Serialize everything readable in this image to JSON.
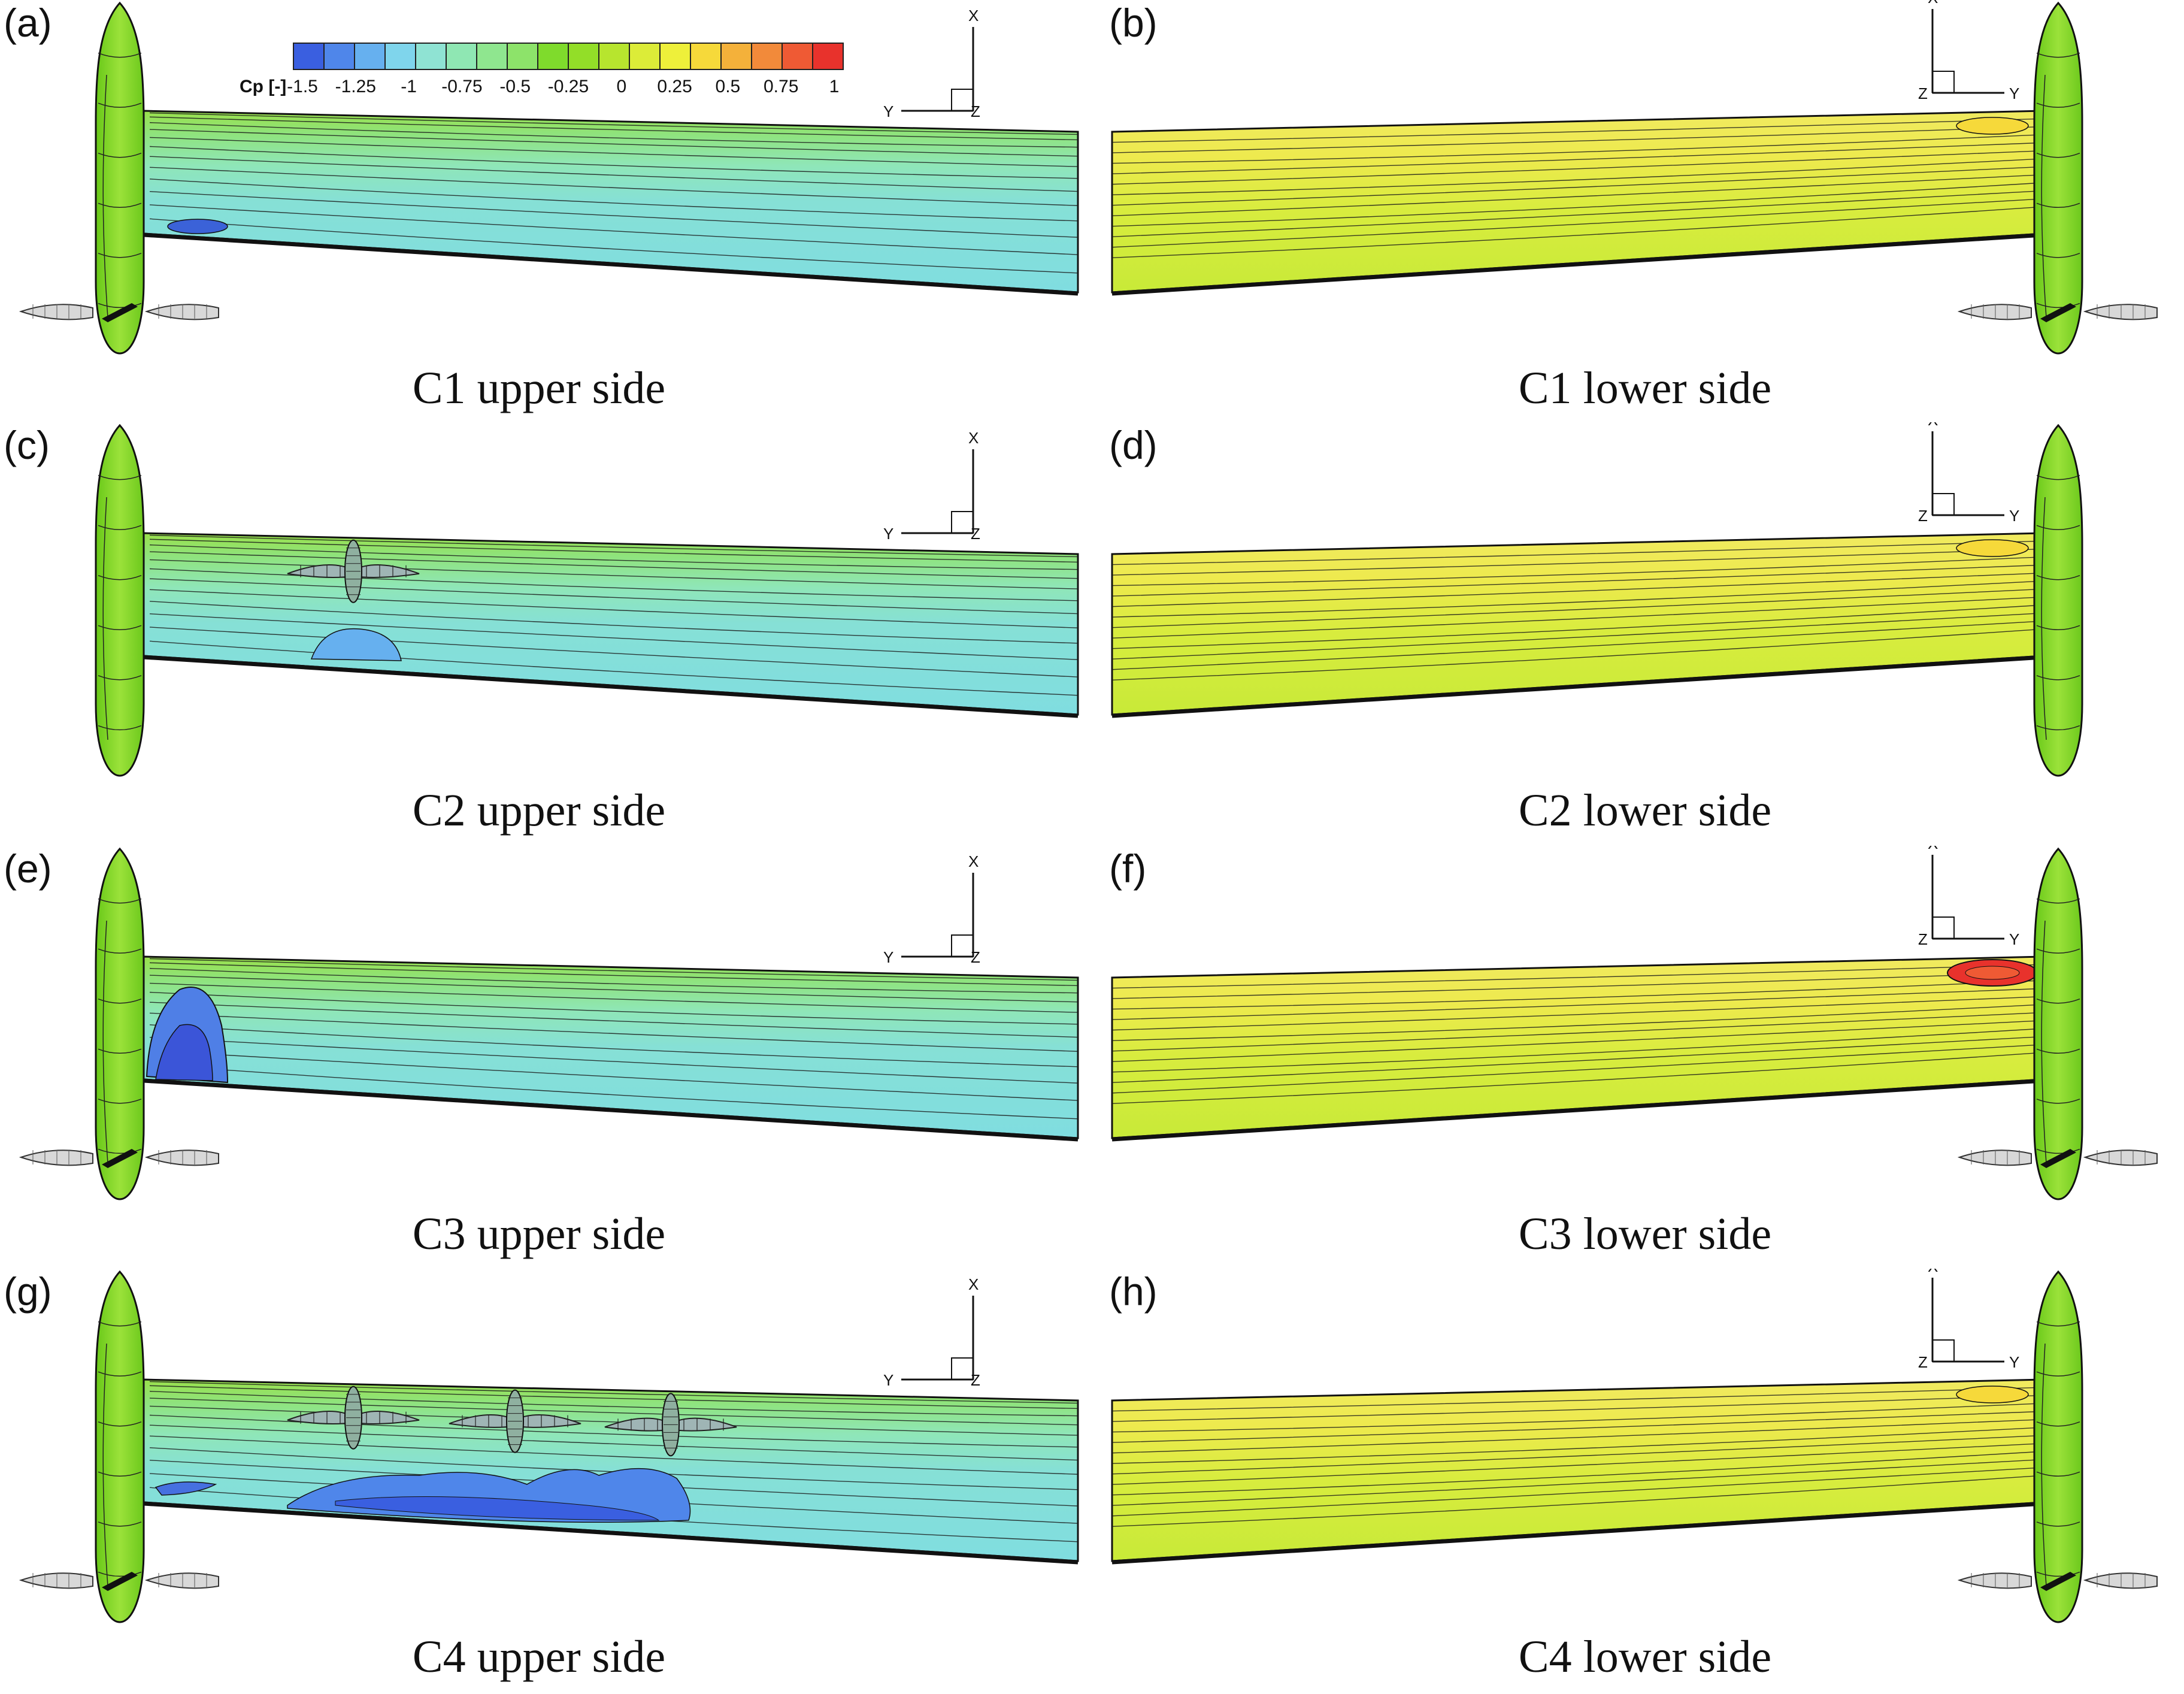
{
  "colorbar": {
    "title": "Cp [-]",
    "ticks": [
      "-1.5",
      "-1.25",
      "-1",
      "-0.75",
      "-0.5",
      "-0.25",
      "0",
      "0.25",
      "0.5",
      "0.75",
      "1"
    ],
    "colors": [
      "#3a5fe0",
      "#4f86ea",
      "#66b0ef",
      "#7fd5ec",
      "#8fe3d3",
      "#8fe7b3",
      "#8fe68f",
      "#8de36a",
      "#7fdb2c",
      "#93de28",
      "#b7e52e",
      "#dcec38",
      "#eef03a",
      "#f6d93a",
      "#f4b13a",
      "#f28a3a",
      "#ef5a34",
      "#e8322c"
    ]
  },
  "axes": {
    "x": "X",
    "y": "Y",
    "z": "Z"
  },
  "panels": [
    {
      "id": "a",
      "label": "(a)",
      "caption": "C1 upper side",
      "side": "upper",
      "props": 0,
      "nacelle": true
    },
    {
      "id": "b",
      "label": "(b)",
      "caption": "C1 lower side",
      "side": "lower",
      "props": 0,
      "nacelle": true
    },
    {
      "id": "c",
      "label": "(c)",
      "caption": "C2 upper side",
      "side": "upper",
      "props": 1,
      "nacelle": false
    },
    {
      "id": "d",
      "label": "(d)",
      "caption": "C2 lower side",
      "side": "lower",
      "props": 0,
      "nacelle": false
    },
    {
      "id": "e",
      "label": "(e)",
      "caption": "C3 upper side",
      "side": "upper",
      "props": 0,
      "nacelle": true
    },
    {
      "id": "f",
      "label": "(f)",
      "caption": "C3 lower side",
      "side": "lower",
      "props": 0,
      "nacelle": true
    },
    {
      "id": "g",
      "label": "(g)",
      "caption": "C4 upper side",
      "side": "upper",
      "props": 3,
      "nacelle": true
    },
    {
      "id": "h",
      "label": "(h)",
      "caption": "C4 lower side",
      "side": "lower",
      "props": 0,
      "nacelle": true
    }
  ]
}
